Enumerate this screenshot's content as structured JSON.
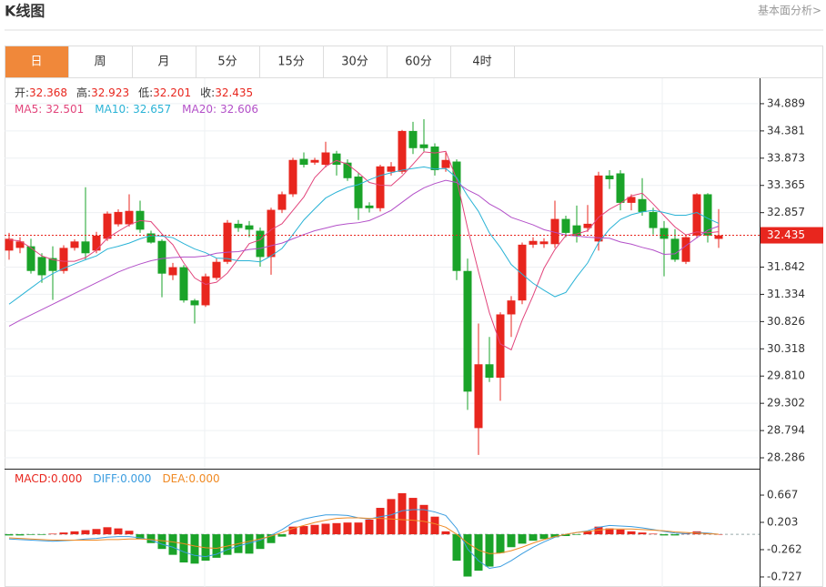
{
  "header": {
    "title": "K线图",
    "link": "基本面分析>"
  },
  "tabs": [
    "日",
    "周",
    "月",
    "5分",
    "15分",
    "30分",
    "60分",
    "4时"
  ],
  "active_tab": 0,
  "chart_data": [
    {
      "type": "candlestick",
      "readout_labels": [
        "开:",
        "高:",
        "低:",
        "收:"
      ],
      "up_color": "#e8261e",
      "down_color": "#1aa329",
      "readout_value_color": "#e8261e",
      "candles": {
        "open": [
          32.15,
          32.2,
          32.23,
          32.03,
          32.01,
          31.77,
          32.2,
          32.32,
          32.15,
          32.37,
          32.64,
          32.64,
          32.89,
          32.47,
          32.33,
          31.69,
          31.84,
          31.22,
          31.13,
          31.64,
          31.94,
          32.65,
          32.62,
          32.52,
          32.03,
          32.91,
          33.2,
          33.86,
          33.79,
          33.75,
          33.96,
          33.79,
          33.53,
          32.99,
          32.94,
          33.62,
          33.62,
          34.38,
          34.13,
          34.09,
          33.69,
          33.81,
          31.77,
          28.84,
          30.03,
          29.78,
          30.96,
          31.22,
          32.26,
          32.27,
          32.27,
          32.74,
          32.62,
          32.57,
          32.32,
          33.55,
          33.59,
          33.04,
          33.11,
          32.87,
          32.57,
          32.37,
          31.94,
          32.43,
          33.2,
          32.368
        ],
        "high": [
          32.48,
          32.4,
          32.37,
          32.1,
          32.23,
          32.25,
          32.36,
          33.33,
          32.5,
          32.88,
          32.92,
          33.2,
          33.08,
          32.52,
          32.36,
          31.92,
          31.88,
          31.25,
          31.72,
          32.0,
          32.72,
          32.72,
          32.7,
          32.58,
          32.95,
          33.25,
          33.88,
          33.98,
          33.88,
          34.18,
          34.01,
          33.85,
          33.6,
          33.05,
          33.75,
          33.8,
          34.4,
          34.55,
          34.6,
          34.15,
          33.98,
          33.85,
          32.0,
          30.79,
          30.54,
          31.0,
          31.3,
          32.3,
          32.4,
          32.38,
          33.08,
          32.8,
          32.99,
          33.0,
          33.62,
          33.65,
          33.65,
          33.2,
          33.5,
          32.95,
          32.7,
          32.55,
          32.45,
          33.22,
          33.22,
          32.923
        ],
        "low": [
          31.98,
          32.1,
          31.72,
          31.55,
          31.23,
          31.72,
          32.15,
          31.98,
          32.1,
          32.33,
          32.6,
          32.6,
          32.48,
          32.28,
          31.28,
          31.6,
          31.18,
          30.79,
          31.1,
          31.6,
          31.9,
          32.5,
          32.4,
          31.85,
          31.7,
          32.85,
          33.15,
          33.7,
          33.75,
          33.7,
          33.55,
          33.45,
          32.72,
          32.86,
          32.88,
          33.55,
          33.58,
          33.95,
          34.0,
          33.55,
          33.62,
          31.6,
          29.18,
          28.34,
          29.7,
          29.35,
          30.54,
          31.15,
          32.2,
          32.2,
          32.2,
          32.4,
          32.3,
          32.5,
          32.15,
          33.3,
          32.9,
          32.9,
          32.8,
          32.45,
          31.67,
          31.94,
          31.9,
          32.38,
          32.3,
          32.201
        ],
        "close": [
          32.37,
          32.32,
          31.77,
          31.69,
          31.77,
          32.2,
          32.32,
          32.1,
          32.43,
          32.84,
          32.87,
          32.89,
          32.54,
          32.3,
          31.72,
          31.84,
          31.22,
          31.13,
          31.67,
          31.94,
          32.67,
          32.57,
          32.54,
          32.03,
          32.91,
          33.2,
          33.84,
          33.75,
          33.84,
          33.98,
          33.75,
          33.5,
          32.94,
          32.94,
          33.72,
          33.72,
          34.38,
          34.06,
          34.06,
          33.65,
          33.84,
          31.77,
          29.52,
          30.03,
          29.78,
          30.96,
          31.22,
          32.26,
          32.33,
          32.32,
          32.74,
          32.48,
          32.43,
          32.65,
          33.55,
          33.48,
          33.04,
          33.15,
          32.87,
          32.57,
          32.37,
          31.98,
          32.4,
          33.2,
          32.43,
          32.435
        ]
      },
      "series": [
        {
          "name": "MA5:",
          "color": "#e2457c",
          "values": [
            32.35,
            32.33,
            32.2,
            32.05,
            31.98,
            31.95,
            31.95,
            32.02,
            32.16,
            32.38,
            32.51,
            32.63,
            32.71,
            32.69,
            32.46,
            32.26,
            31.92,
            31.64,
            31.52,
            31.56,
            31.73,
            32.0,
            32.28,
            32.35,
            32.54,
            32.65,
            32.9,
            33.15,
            33.51,
            33.72,
            33.83,
            33.76,
            33.6,
            33.42,
            33.37,
            33.36,
            33.54,
            33.76,
            33.99,
            33.97,
            34.0,
            33.48,
            32.57,
            31.76,
            30.99,
            30.41,
            30.3,
            30.85,
            31.31,
            31.82,
            32.17,
            32.43,
            32.46,
            32.52,
            32.77,
            32.92,
            33.03,
            33.17,
            33.22,
            33.02,
            32.8,
            32.59,
            32.44,
            32.5,
            32.48,
            32.501
          ]
        },
        {
          "name": "MA10:",
          "color": "#2ab3d6",
          "values": [
            31.15,
            31.3,
            31.45,
            31.6,
            31.72,
            31.82,
            31.9,
            31.98,
            32.05,
            32.18,
            32.23,
            32.29,
            32.37,
            32.43,
            32.42,
            32.39,
            32.28,
            32.18,
            32.11,
            32.01,
            32.0,
            31.96,
            31.96,
            31.94,
            32.05,
            32.19,
            32.45,
            32.72,
            32.93,
            33.13,
            33.24,
            33.33,
            33.38,
            33.47,
            33.55,
            33.6,
            33.65,
            33.68,
            33.71,
            33.67,
            33.68,
            33.51,
            33.17,
            32.88,
            32.48,
            32.21,
            31.89,
            31.71,
            31.54,
            31.41,
            31.29,
            31.37,
            31.66,
            31.92,
            32.3,
            32.55,
            32.73,
            32.82,
            32.87,
            32.9,
            32.86,
            32.81,
            32.81,
            32.86,
            32.75,
            32.657
          ]
        },
        {
          "name": "MA20:",
          "color": "#b350c8",
          "values": [
            30.74,
            30.85,
            30.95,
            31.05,
            31.15,
            31.25,
            31.35,
            31.45,
            31.55,
            31.65,
            31.75,
            31.83,
            31.9,
            31.96,
            32.0,
            32.02,
            32.03,
            32.03,
            32.05,
            32.1,
            32.12,
            32.13,
            32.17,
            32.19,
            32.24,
            32.29,
            32.37,
            32.45,
            32.52,
            32.57,
            32.62,
            32.65,
            32.67,
            32.71,
            32.8,
            32.9,
            33.05,
            33.2,
            33.32,
            33.4,
            33.46,
            33.42,
            33.28,
            33.18,
            33.02,
            32.91,
            32.77,
            32.7,
            32.63,
            32.54,
            32.49,
            32.44,
            32.42,
            32.4,
            32.39,
            32.38,
            32.31,
            32.27,
            32.21,
            32.16,
            32.08,
            32.09,
            32.24,
            32.39,
            32.53,
            32.606
          ]
        }
      ],
      "ylim": [
        28.083,
        35.363
      ],
      "yticks": [
        34.889,
        34.381,
        33.873,
        33.365,
        32.857,
        31.842,
        31.334,
        30.826,
        30.318,
        {
          "value": 29.81,
          "label": "29.810"
        },
        29.302,
        28.794,
        28.286
      ],
      "grid": true,
      "last_price_line": true,
      "last_price_color": "#e8261e"
    },
    {
      "type": "macd",
      "bars": {
        "name": "MACD:",
        "current_label": "0.000",
        "up_color": "#e8261e",
        "down_color": "#1aa329",
        "values": [
          -0.02,
          -0.02,
          -0.01,
          -0.01,
          0.01,
          0.03,
          0.05,
          0.07,
          0.09,
          0.12,
          0.1,
          0.06,
          -0.08,
          -0.15,
          -0.25,
          -0.35,
          -0.48,
          -0.5,
          -0.45,
          -0.4,
          -0.35,
          -0.32,
          -0.33,
          -0.25,
          -0.15,
          -0.04,
          0.13,
          0.14,
          0.16,
          0.18,
          0.19,
          0.2,
          0.2,
          0.25,
          0.45,
          0.6,
          0.7,
          0.62,
          0.5,
          0.3,
          0.05,
          -0.45,
          -0.72,
          -0.62,
          -0.55,
          -0.32,
          -0.22,
          -0.16,
          -0.11,
          -0.08,
          -0.05,
          -0.03,
          -0.01,
          0.05,
          0.13,
          0.1,
          0.08,
          0.05,
          0.03,
          0.01,
          -0.02,
          -0.02,
          0.01,
          0.05,
          0.02,
          0
        ]
      },
      "series": [
        {
          "name": "DIFF:",
          "current_label": "0.000",
          "color": "#3b9de0",
          "values": [
            -0.08,
            -0.09,
            -0.1,
            -0.11,
            -0.12,
            -0.11,
            -0.1,
            -0.08,
            -0.07,
            -0.05,
            -0.04,
            -0.04,
            -0.06,
            -0.1,
            -0.17,
            -0.22,
            -0.3,
            -0.36,
            -0.38,
            -0.34,
            -0.26,
            -0.2,
            -0.15,
            -0.1,
            -0.02,
            0.08,
            0.2,
            0.26,
            0.3,
            0.33,
            0.33,
            0.32,
            0.28,
            0.26,
            0.3,
            0.33,
            0.4,
            0.42,
            0.42,
            0.38,
            0.32,
            0.1,
            -0.25,
            -0.45,
            -0.58,
            -0.55,
            -0.45,
            -0.33,
            -0.22,
            -0.13,
            -0.05,
            0,
            0.03,
            0.06,
            0.12,
            0.15,
            0.14,
            0.13,
            0.11,
            0.08,
            0.05,
            0.02,
            0.01,
            0.03,
            0.02,
            0
          ]
        },
        {
          "name": "DEA:",
          "current_label": "0.000",
          "color": "#f08a24",
          "values": [
            -0.06,
            -0.07,
            -0.08,
            -0.09,
            -0.1,
            -0.1,
            -0.1,
            -0.1,
            -0.1,
            -0.09,
            -0.09,
            -0.08,
            -0.08,
            -0.09,
            -0.11,
            -0.13,
            -0.16,
            -0.2,
            -0.23,
            -0.24,
            -0.2,
            -0.16,
            -0.12,
            -0.08,
            -0.03,
            0.03,
            0.1,
            0.15,
            0.2,
            0.24,
            0.27,
            0.28,
            0.28,
            0.27,
            0.27,
            0.26,
            0.25,
            0.24,
            0.22,
            0.18,
            0.12,
            0,
            -0.15,
            -0.27,
            -0.33,
            -0.32,
            -0.28,
            -0.22,
            -0.15,
            -0.09,
            -0.04,
            0,
            0.03,
            0.05,
            0.07,
            0.09,
            0.09,
            0.09,
            0.08,
            0.07,
            0.06,
            0.04,
            0.03,
            0.02,
            0.01,
            0
          ]
        }
      ],
      "ylim": [
        -0.898,
        1.117
      ],
      "yticks": [
        0.667,
        0.203,
        -0.262,
        -0.727
      ],
      "zero_line": true
    }
  ]
}
